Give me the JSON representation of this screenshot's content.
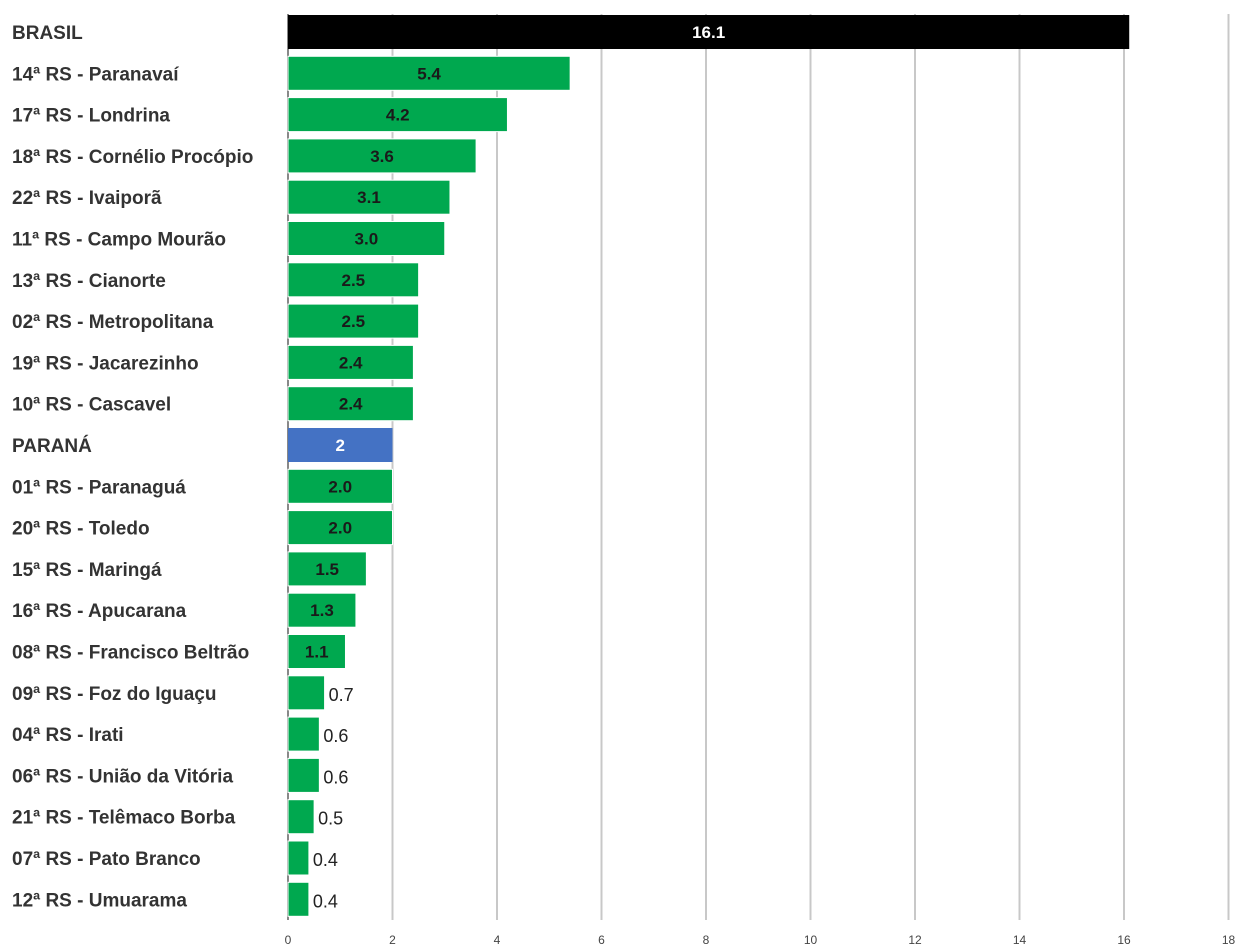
{
  "chart_data": {
    "type": "bar",
    "orientation": "horizontal",
    "title": "",
    "xlabel": "",
    "ylabel": "",
    "xlim": [
      0,
      18
    ],
    "grid": true,
    "categories": [
      "BRASIL",
      "14ª RS - Paranavaí",
      "17ª RS - Londrina",
      "18ª RS - Cornélio Procópio",
      "22ª RS - Ivaiporã",
      "11ª RS - Campo Mourão",
      "13ª RS - Cianorte",
      "02ª RS - Metropolitana",
      "19ª RS - Jacarezinho",
      "10ª RS - Cascavel",
      "PARANÁ",
      "01ª RS - Paranaguá",
      "20ª RS - Toledo",
      "15ª RS - Maringá",
      "16ª RS - Apucarana",
      "08ª RS - Francisco Beltrão",
      "09ª RS - Foz do Iguaçu",
      "04ª RS - Irati",
      "06ª RS - União da Vitória",
      "21ª RS - Telêmaco Borba",
      "07ª RS - Pato Branco",
      "12ª RS - Umuarama"
    ],
    "values": [
      16.1,
      5.4,
      4.2,
      3.6,
      3.1,
      3.0,
      2.5,
      2.5,
      2.4,
      2.4,
      2.0,
      2.0,
      2.0,
      1.5,
      1.3,
      1.1,
      0.7,
      0.6,
      0.6,
      0.5,
      0.4,
      0.4
    ],
    "value_labels": [
      "16.1",
      "5.4",
      "4.2",
      "3.6",
      "3.1",
      "3.0",
      "2.5",
      "2.5",
      "2.4",
      "2.4",
      "2",
      "2.0",
      "2.0",
      "1.5",
      "1.3",
      "1.1",
      "0.7",
      "0.6",
      "0.6",
      "0.5",
      "0.4",
      "0.4"
    ],
    "x_ticks": [
      "0",
      "2",
      "4",
      "6",
      "8",
      "10",
      "12",
      "14",
      "16",
      "18"
    ],
    "colors": {
      "default": "#00a84f",
      "BRASIL": "#000000",
      "PARANÁ": "#4472c4",
      "grid": "#c8c8c8"
    }
  }
}
